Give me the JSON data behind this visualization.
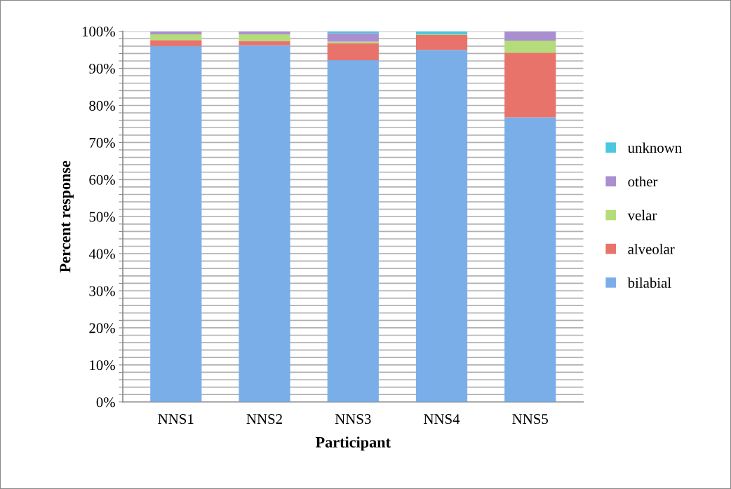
{
  "chart_data": {
    "type": "bar",
    "stacked": true,
    "xlabel": "Participant",
    "ylabel": "Percent response",
    "categories": [
      "NNS1",
      "NNS2",
      "NNS3",
      "NNS4",
      "NNS5"
    ],
    "series": [
      {
        "name": "bilabial",
        "color": "#7aaee8",
        "values": [
          96.0,
          96.2,
          92.2,
          95.0,
          76.8
        ]
      },
      {
        "name": "alveolar",
        "color": "#e8736b",
        "values": [
          1.6,
          1.2,
          4.6,
          4.0,
          17.4
        ]
      },
      {
        "name": "velar",
        "color": "#b5dc7a",
        "values": [
          1.6,
          1.8,
          0.4,
          0.2,
          3.3
        ]
      },
      {
        "name": "other",
        "color": "#a98fd0",
        "values": [
          0.8,
          0.8,
          2.3,
          0,
          2.5
        ]
      },
      {
        "name": "unknown",
        "color": "#4bc8e0",
        "values": [
          0,
          0,
          0.5,
          0.8,
          0
        ]
      }
    ],
    "ylim": [
      0,
      100
    ],
    "yticks": [
      {
        "value": 0,
        "label": "0%"
      },
      {
        "value": 2,
        "label": null
      },
      {
        "value": 4,
        "label": null
      },
      {
        "value": 6,
        "label": null
      },
      {
        "value": 8,
        "label": null
      },
      {
        "value": 10,
        "label": "10%"
      },
      {
        "value": 12,
        "label": null
      },
      {
        "value": 14,
        "label": null
      },
      {
        "value": 16,
        "label": null
      },
      {
        "value": 18,
        "label": null
      },
      {
        "value": 20,
        "label": "20%"
      },
      {
        "value": 22,
        "label": null
      },
      {
        "value": 24,
        "label": null
      },
      {
        "value": 26,
        "label": null
      },
      {
        "value": 28,
        "label": null
      },
      {
        "value": 30,
        "label": "30%"
      },
      {
        "value": 32,
        "label": null
      },
      {
        "value": 34,
        "label": null
      },
      {
        "value": 36,
        "label": null
      },
      {
        "value": 38,
        "label": null
      },
      {
        "value": 40,
        "label": "40%"
      },
      {
        "value": 42,
        "label": null
      },
      {
        "value": 44,
        "label": null
      },
      {
        "value": 46,
        "label": null
      },
      {
        "value": 48,
        "label": null
      },
      {
        "value": 50,
        "label": "50%"
      },
      {
        "value": 52,
        "label": null
      },
      {
        "value": 54,
        "label": null
      },
      {
        "value": 56,
        "label": null
      },
      {
        "value": 58,
        "label": null
      },
      {
        "value": 60,
        "label": "60%"
      },
      {
        "value": 62,
        "label": null
      },
      {
        "value": 64,
        "label": null
      },
      {
        "value": 66,
        "label": null
      },
      {
        "value": 68,
        "label": null
      },
      {
        "value": 70,
        "label": "70%"
      },
      {
        "value": 72,
        "label": null
      },
      {
        "value": 74,
        "label": null
      },
      {
        "value": 76,
        "label": null
      },
      {
        "value": 78,
        "label": null
      },
      {
        "value": 80,
        "label": "80%"
      },
      {
        "value": 82,
        "label": null
      },
      {
        "value": 84,
        "label": null
      },
      {
        "value": 86,
        "label": null
      },
      {
        "value": 88,
        "label": null
      },
      {
        "value": 90,
        "label": "90%"
      },
      {
        "value": 92,
        "label": null
      },
      {
        "value": 94,
        "label": null
      },
      {
        "value": 96,
        "label": null
      },
      {
        "value": 98,
        "label": null
      },
      {
        "value": 100,
        "label": "100%"
      }
    ],
    "grid": "y",
    "legend": "right"
  }
}
